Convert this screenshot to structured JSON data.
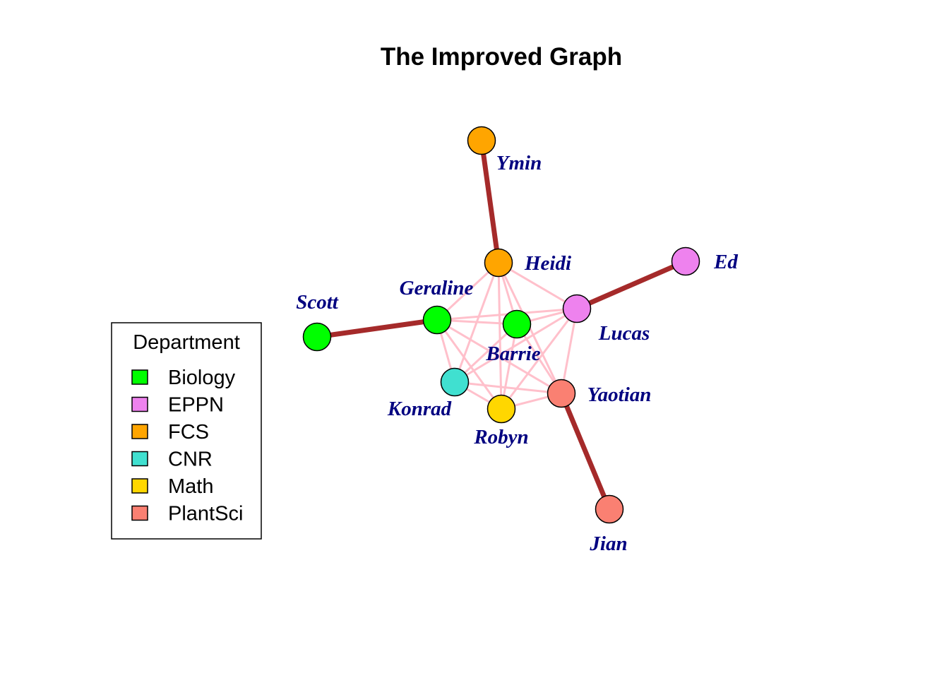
{
  "title": "The Improved Graph",
  "colors": {
    "weak_edge": "#ffc0cb",
    "strong_edge": "#a52a2a",
    "label": "#000080",
    "node_stroke": "#000000"
  },
  "legend": {
    "title": "Department",
    "items": [
      {
        "label": "Biology",
        "color": "#00ff00"
      },
      {
        "label": "EPPN",
        "color": "#ee82ee"
      },
      {
        "label": "FCS",
        "color": "#ffa500"
      },
      {
        "label": "CNR",
        "color": "#40e0d0"
      },
      {
        "label": "Math",
        "color": "#ffd700"
      },
      {
        "label": "PlantSci",
        "color": "#fa8072"
      }
    ]
  },
  "nodes": [
    {
      "id": "ymin",
      "name": "Ymin",
      "department": "FCS"
    },
    {
      "id": "heidi",
      "name": "Heidi",
      "department": "FCS"
    },
    {
      "id": "ed",
      "name": "Ed",
      "department": "EPPN"
    },
    {
      "id": "geraline",
      "name": "Geraline",
      "department": "Biology"
    },
    {
      "id": "scott",
      "name": "Scott",
      "department": "Biology"
    },
    {
      "id": "barrie",
      "name": "Barrie",
      "department": "Biology"
    },
    {
      "id": "lucas",
      "name": "Lucas",
      "department": "EPPN"
    },
    {
      "id": "konrad",
      "name": "Konrad",
      "department": "CNR"
    },
    {
      "id": "yaotian",
      "name": "Yaotian",
      "department": "PlantSci"
    },
    {
      "id": "robyn",
      "name": "Robyn",
      "department": "Math"
    },
    {
      "id": "jian",
      "name": "Jian",
      "department": "PlantSci"
    }
  ],
  "edges": [
    {
      "from": "ymin",
      "to": "heidi",
      "type": "strong"
    },
    {
      "from": "scott",
      "to": "geraline",
      "type": "strong"
    },
    {
      "from": "lucas",
      "to": "ed",
      "type": "strong"
    },
    {
      "from": "yaotian",
      "to": "jian",
      "type": "strong"
    },
    {
      "from": "heidi",
      "to": "geraline",
      "type": "weak"
    },
    {
      "from": "heidi",
      "to": "barrie",
      "type": "weak"
    },
    {
      "from": "heidi",
      "to": "lucas",
      "type": "weak"
    },
    {
      "from": "heidi",
      "to": "konrad",
      "type": "weak"
    },
    {
      "from": "heidi",
      "to": "yaotian",
      "type": "weak"
    },
    {
      "from": "heidi",
      "to": "robyn",
      "type": "weak"
    },
    {
      "from": "geraline",
      "to": "barrie",
      "type": "weak"
    },
    {
      "from": "geraline",
      "to": "lucas",
      "type": "weak"
    },
    {
      "from": "geraline",
      "to": "konrad",
      "type": "weak"
    },
    {
      "from": "geraline",
      "to": "yaotian",
      "type": "weak"
    },
    {
      "from": "geraline",
      "to": "robyn",
      "type": "weak"
    },
    {
      "from": "barrie",
      "to": "lucas",
      "type": "weak"
    },
    {
      "from": "barrie",
      "to": "konrad",
      "type": "weak"
    },
    {
      "from": "barrie",
      "to": "yaotian",
      "type": "weak"
    },
    {
      "from": "barrie",
      "to": "robyn",
      "type": "weak"
    },
    {
      "from": "lucas",
      "to": "konrad",
      "type": "weak"
    },
    {
      "from": "lucas",
      "to": "yaotian",
      "type": "weak"
    },
    {
      "from": "lucas",
      "to": "robyn",
      "type": "weak"
    },
    {
      "from": "konrad",
      "to": "yaotian",
      "type": "weak"
    },
    {
      "from": "konrad",
      "to": "robyn",
      "type": "weak"
    },
    {
      "from": "yaotian",
      "to": "robyn",
      "type": "weak"
    }
  ]
}
